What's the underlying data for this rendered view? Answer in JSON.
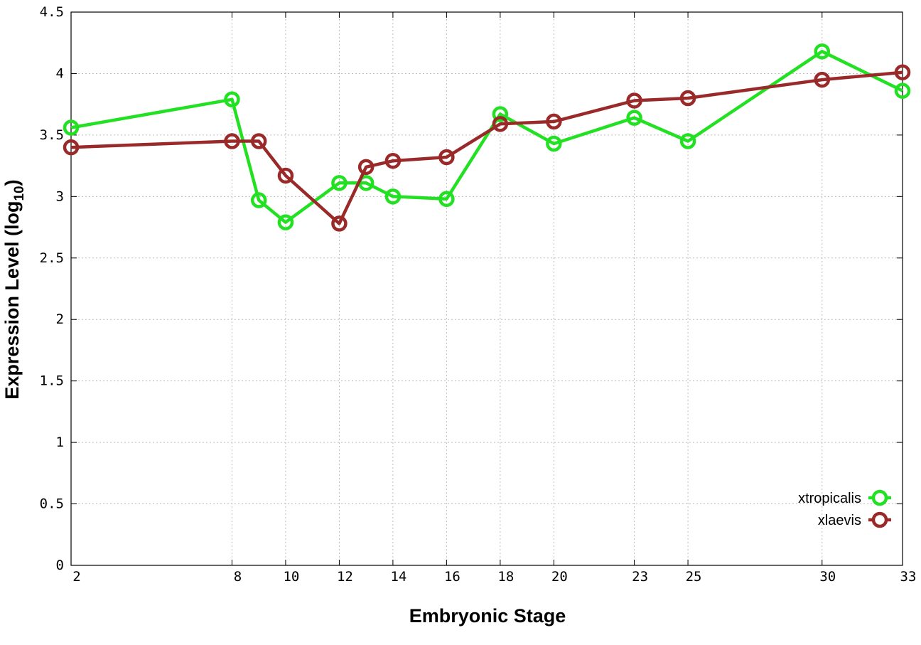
{
  "chart_data": {
    "type": "line",
    "x_ticks": [
      "2",
      "8",
      "10",
      "12",
      "14",
      "16",
      "18",
      "20",
      "23",
      "25",
      "30",
      "33"
    ],
    "x": [
      2,
      8,
      9,
      10,
      12,
      13,
      14,
      16,
      18,
      20,
      23,
      25,
      30,
      33
    ],
    "xlim": [
      2,
      33
    ],
    "ylim": [
      0,
      4.5
    ],
    "y_ticks": [
      "0",
      "0.5",
      "1",
      "1.5",
      "2",
      "2.5",
      "3",
      "3.5",
      "4",
      "4.5"
    ],
    "xlabel": "Embryonic Stage",
    "ylabel_main": "Expression Level (log",
    "ylabel_sub": "10",
    "ylabel_close": ")",
    "grid": true,
    "legend_position": "bottom-right",
    "series": [
      {
        "name": "xtropicalis",
        "color": "#22e022",
        "values": [
          3.56,
          3.79,
          2.97,
          2.79,
          3.11,
          3.11,
          3.0,
          2.98,
          3.67,
          3.43,
          3.64,
          3.45,
          4.18,
          3.86
        ]
      },
      {
        "name": "xlaevis",
        "color": "#9a2a2a",
        "values": [
          3.4,
          3.45,
          3.45,
          3.17,
          2.78,
          3.24,
          3.29,
          3.32,
          3.59,
          3.61,
          3.78,
          3.8,
          3.95,
          4.01
        ]
      }
    ]
  }
}
